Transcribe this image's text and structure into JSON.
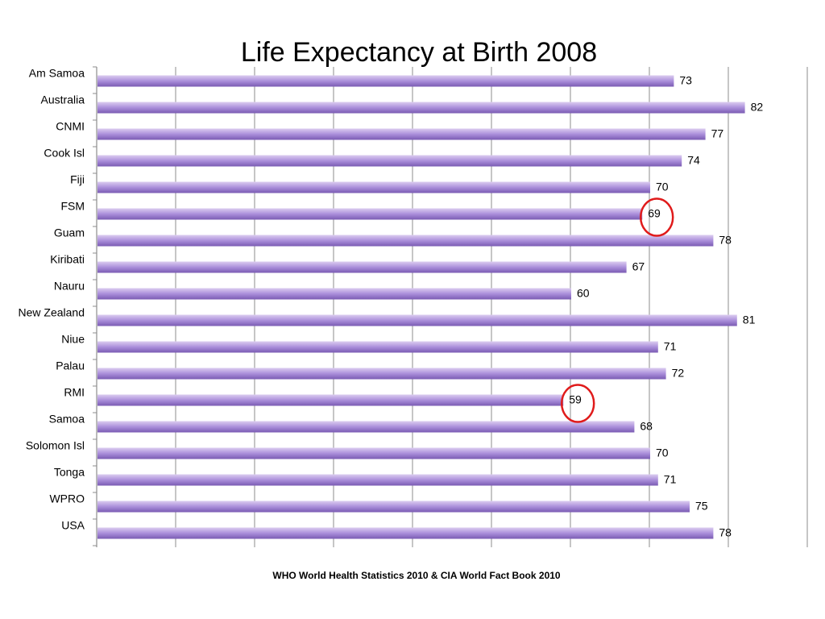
{
  "slide": {
    "source": "WHO World Health Statistics 2010 & CIA World Fact Book 2010"
  },
  "colors": {
    "bar_light": "#dccdf0",
    "bar_mid": "#ab8fdb",
    "bar_dark": "#7a5bb3",
    "gridline": "#8c8c8c",
    "highlight_circle": "#e01b1b"
  },
  "chart_data": {
    "type": "bar",
    "orientation": "horizontal",
    "title": "Life Expectancy at Birth 2008",
    "categories": [
      "Am Samoa",
      "Australia",
      "CNMI",
      "Cook Isl",
      "Fiji",
      "FSM",
      "Guam",
      "Kiribati",
      "Nauru",
      "New Zealand",
      "Niue",
      "Palau",
      "RMI",
      "Samoa",
      "Solomon Isl",
      "Tonga",
      "WPRO",
      "USA"
    ],
    "values": [
      73,
      82,
      77,
      74,
      70,
      69,
      78,
      67,
      60,
      81,
      71,
      72,
      59,
      68,
      70,
      71,
      75,
      78
    ],
    "xlim": [
      0,
      90
    ],
    "x_gridline_step": 10,
    "x_tick_labels_shown": false,
    "grid": true,
    "data_labels": true,
    "highlighted_categories": [
      "FSM",
      "RMI"
    ]
  }
}
